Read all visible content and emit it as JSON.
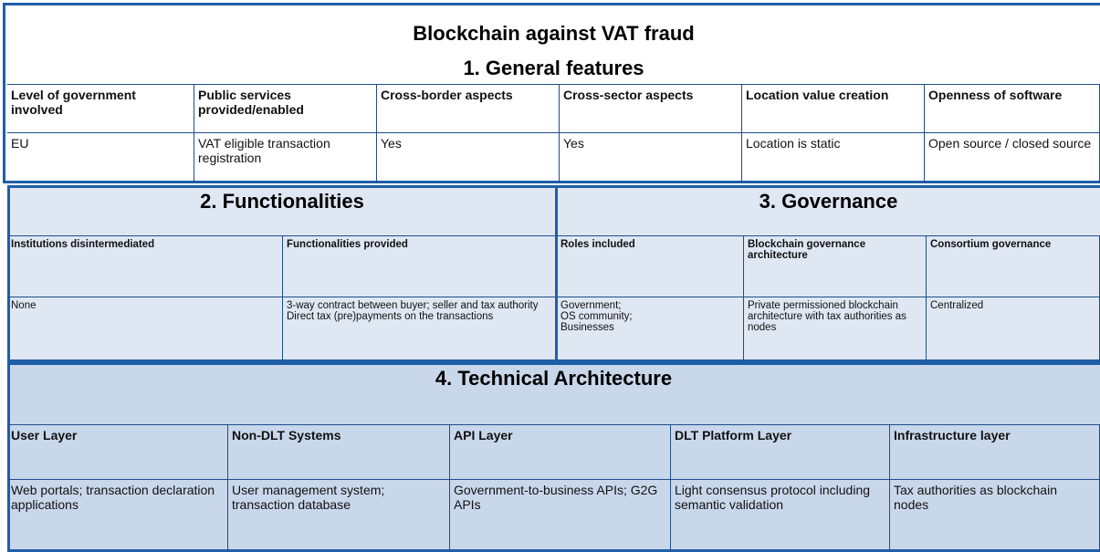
{
  "header": {
    "title": "Blockchain against VAT fraud"
  },
  "sections": [
    {
      "title": "1. General features",
      "headers": [
        "Level of government involved",
        "Public services provided/enabled",
        "Cross-border  aspects",
        "Cross-sector  aspects",
        "Location value creation",
        "Openness of software"
      ],
      "values": [
        "EU",
        "VAT eligible transaction registration",
        "Yes",
        "Yes",
        "Location is static",
        "Open source / closed source"
      ]
    },
    {
      "title": "2. Functionalities",
      "headers": [
        "Institutions disintermediated",
        "Functionalities provided"
      ],
      "values": [
        "None",
        "3-way contract between buyer; seller and tax authority\nDirect tax (pre)payments  on the transactions"
      ]
    },
    {
      "title": "3. Governance",
      "headers": [
        "Roles included",
        "Blockchain governance architecture",
        "Consortium governance"
      ],
      "values": [
        "Government;\nOS community;\nBusinesses",
        "Private permissioned blockchain architecture with tax authorities as  nodes",
        "Centralized"
      ]
    },
    {
      "title": "4. Technical Architecture",
      "headers": [
        "User Layer",
        "Non-DLT  Systems",
        "API Layer",
        "DLT Platform Layer",
        "Infrastructure layer"
      ],
      "values": [
        "Web portals; transaction declaration applications",
        "User management  system; transaction database",
        "Government-to-business APIs; G2G APIs",
        "Light consensus protocol including semantic validation",
        "Tax authorities as blockchain nodes"
      ]
    }
  ]
}
